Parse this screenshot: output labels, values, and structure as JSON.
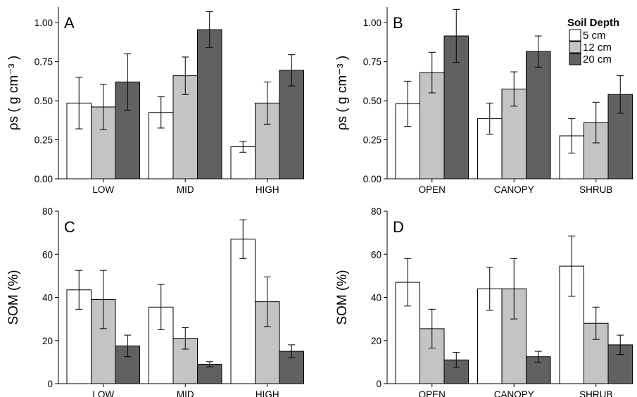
{
  "legend": {
    "title": "Soil Depth",
    "entries": [
      {
        "label": "5 cm",
        "color": "#ffffff"
      },
      {
        "label": "12 cm",
        "color": "#c4c4c4"
      },
      {
        "label": "20 cm",
        "color": "#616161"
      }
    ]
  },
  "chart_data": [
    {
      "type": "bar",
      "panel_label": "A",
      "ylabel": "ρs ( g cm⁻³ )",
      "ylim": [
        0,
        1.1
      ],
      "yticks": [
        "0.00",
        "0.25",
        "0.50",
        "0.75",
        "1.00"
      ],
      "categories": [
        "LOW",
        "MID",
        "HIGH"
      ],
      "series": [
        {
          "name": "5 cm",
          "values": [
            0.485,
            0.425,
            0.205
          ],
          "errors": [
            0.165,
            0.1,
            0.035
          ]
        },
        {
          "name": "12 cm",
          "values": [
            0.46,
            0.66,
            0.485
          ],
          "errors": [
            0.145,
            0.12,
            0.135
          ]
        },
        {
          "name": "20 cm",
          "values": [
            0.62,
            0.955,
            0.695
          ],
          "errors": [
            0.18,
            0.115,
            0.1
          ]
        }
      ]
    },
    {
      "type": "bar",
      "panel_label": "B",
      "ylabel": "ρs ( g cm⁻³ )",
      "ylim": [
        0,
        1.1
      ],
      "yticks": [
        "0.00",
        "0.25",
        "0.50",
        "0.75",
        "1.00"
      ],
      "categories": [
        "OPEN",
        "CANOPY",
        "SHRUB"
      ],
      "series": [
        {
          "name": "5 cm",
          "values": [
            0.48,
            0.385,
            0.275
          ],
          "errors": [
            0.145,
            0.1,
            0.11
          ]
        },
        {
          "name": "12 cm",
          "values": [
            0.68,
            0.575,
            0.36
          ],
          "errors": [
            0.13,
            0.11,
            0.13
          ]
        },
        {
          "name": "20 cm",
          "values": [
            0.915,
            0.815,
            0.54
          ],
          "errors": [
            0.17,
            0.1,
            0.12
          ]
        }
      ]
    },
    {
      "type": "bar",
      "panel_label": "C",
      "ylabel": "SOM (%)",
      "ylim": [
        0,
        80
      ],
      "yticks": [
        "0",
        "20",
        "40",
        "60",
        "80"
      ],
      "categories": [
        "LOW",
        "MID",
        "HIGH"
      ],
      "series": [
        {
          "name": "5 cm",
          "values": [
            43.5,
            35.5,
            67
          ],
          "errors": [
            9,
            10.5,
            9
          ]
        },
        {
          "name": "12 cm",
          "values": [
            39,
            21,
            38
          ],
          "errors": [
            13.5,
            5,
            11.5
          ]
        },
        {
          "name": "20 cm",
          "values": [
            17.5,
            9,
            15
          ],
          "errors": [
            5,
            1.2,
            3
          ]
        }
      ]
    },
    {
      "type": "bar",
      "panel_label": "D",
      "ylabel": "SOM (%)",
      "ylim": [
        0,
        80
      ],
      "yticks": [
        "0",
        "20",
        "40",
        "60",
        "80"
      ],
      "categories": [
        "OPEN",
        "CANOPY",
        "SHRUB"
      ],
      "series": [
        {
          "name": "5 cm",
          "values": [
            47,
            44,
            54.5
          ],
          "errors": [
            11,
            10,
            14
          ]
        },
        {
          "name": "12 cm",
          "values": [
            25.5,
            44,
            28
          ],
          "errors": [
            9,
            14,
            7.5
          ]
        },
        {
          "name": "20 cm",
          "values": [
            11,
            12.5,
            18
          ],
          "errors": [
            3.5,
            2.5,
            4.5
          ]
        }
      ]
    }
  ]
}
